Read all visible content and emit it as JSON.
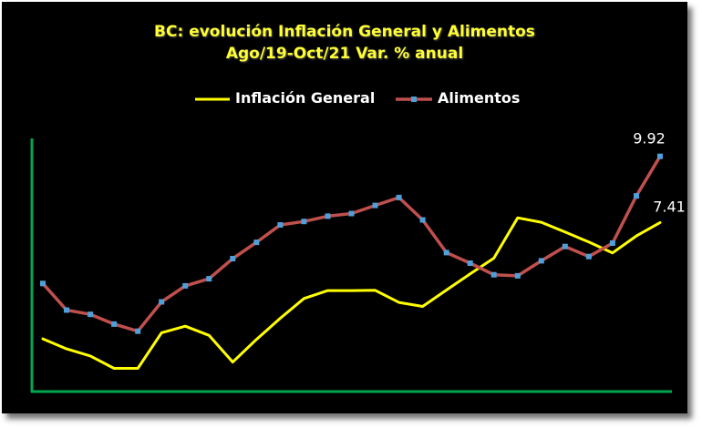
{
  "chart_data": {
    "type": "line",
    "title": "BC: evolución Inflación General y Alimentos",
    "subtitle": "Ago/19-Oct/21 Var. % anual",
    "xlabel": "",
    "ylabel": "",
    "ylim": [
      1.0,
      10.6
    ],
    "legend_position": "top",
    "grid": false,
    "x": [
      1,
      2,
      3,
      4,
      5,
      6,
      7,
      8,
      9,
      10,
      11,
      12,
      13,
      14,
      15,
      16,
      17,
      18,
      19,
      20,
      21,
      22,
      23,
      24,
      25,
      26,
      27
    ],
    "series": [
      {
        "name": "Inflación General",
        "color": "#ffff00",
        "values": [
          3.0,
          2.62,
          2.35,
          1.88,
          1.88,
          3.23,
          3.48,
          3.13,
          2.12,
          2.98,
          3.78,
          4.53,
          4.83,
          4.83,
          4.84,
          4.38,
          4.23,
          4.85,
          5.46,
          6.06,
          7.59,
          7.42,
          7.05,
          6.67,
          6.26,
          6.9,
          7.41
        ]
      },
      {
        "name": "Alimentos",
        "color": "#c0504d",
        "marker_color": "#4f9fd8",
        "values": [
          5.1,
          4.09,
          3.93,
          3.56,
          3.29,
          4.4,
          5.01,
          5.28,
          6.04,
          6.66,
          7.32,
          7.45,
          7.65,
          7.75,
          8.06,
          8.36,
          7.51,
          6.27,
          5.87,
          5.43,
          5.39,
          5.96,
          6.5,
          6.12,
          6.63,
          8.42,
          9.92
        ]
      }
    ],
    "annotations": [
      {
        "series": "Alimentos",
        "label": "9.92"
      },
      {
        "series": "Inflación General",
        "label": "7.41"
      }
    ]
  },
  "axes": {
    "color": "#00a651"
  }
}
